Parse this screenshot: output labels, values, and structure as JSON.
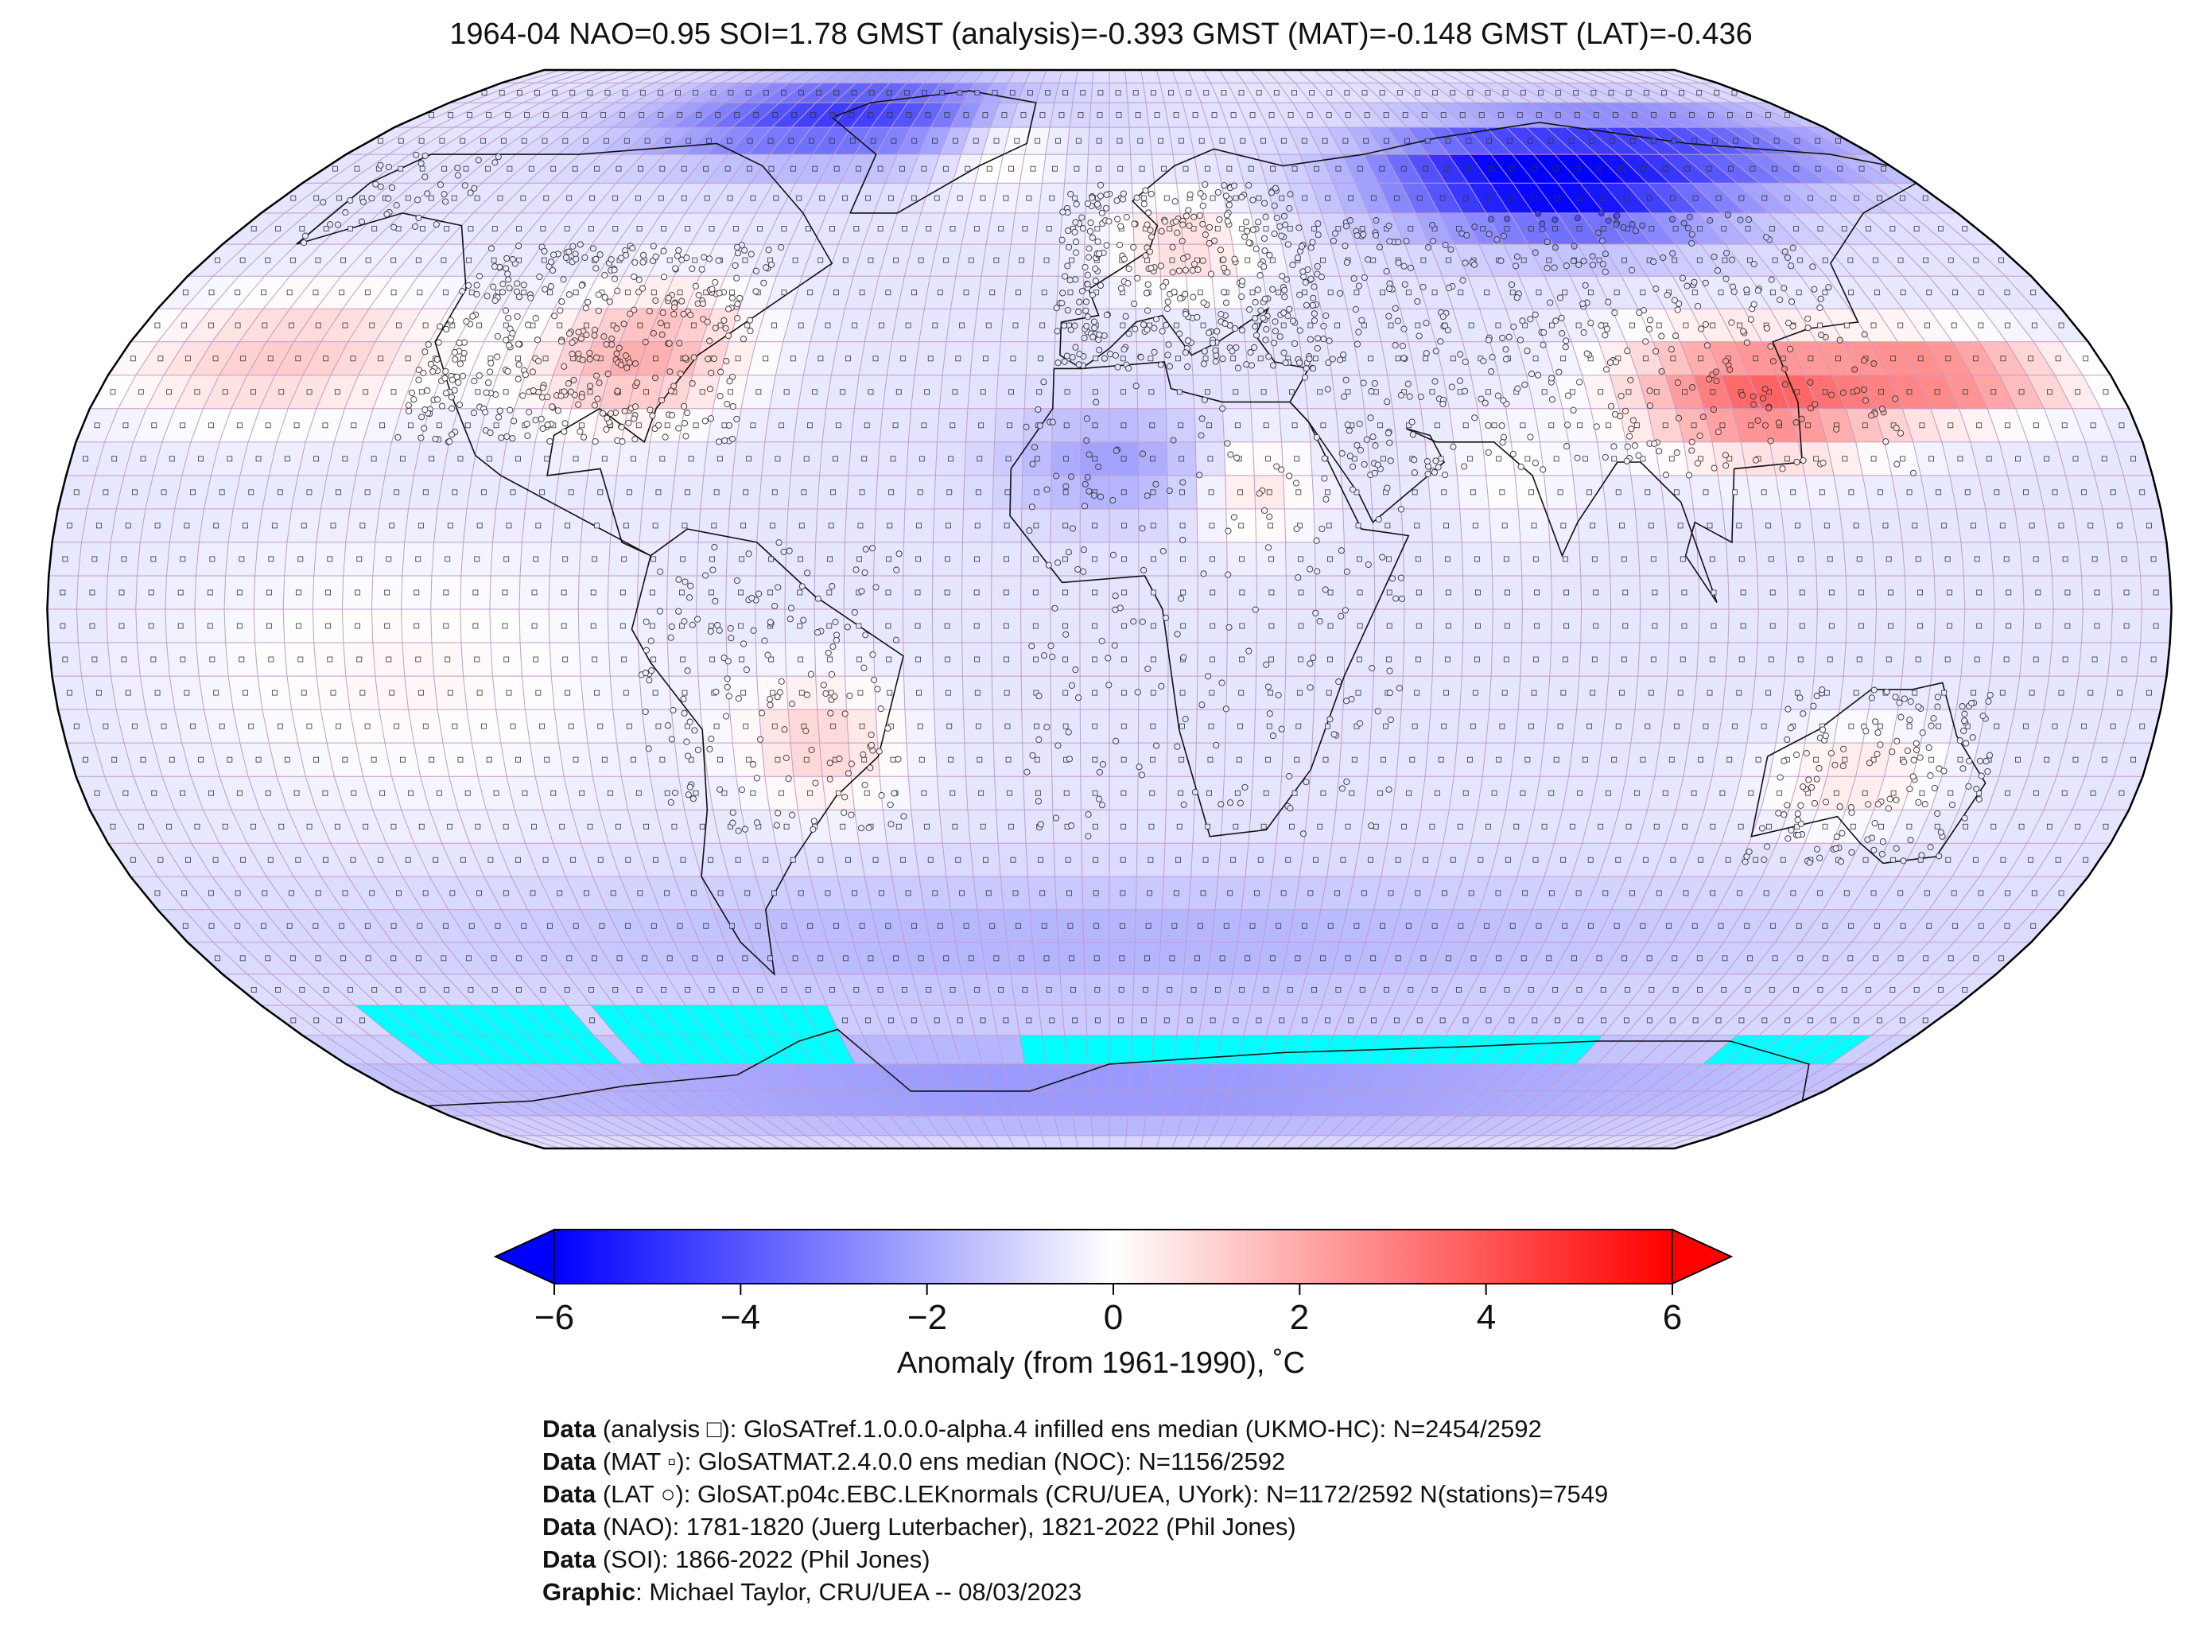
{
  "title": "1964-04 NAO=0.95 SOI=1.78 GMST (analysis)=-0.393 GMST (MAT)=-0.148 GMST (LAT)=-0.436",
  "colorbar": {
    "ticks": [
      "−6",
      "−4",
      "−2",
      "0",
      "2",
      "4",
      "6"
    ],
    "tick_values": [
      -6,
      -4,
      -2,
      0,
      2,
      4,
      6
    ],
    "label": "Anomaly (from 1961-1990), ˚C",
    "colors": {
      "min": "#0000ff",
      "mid": "#ffffff",
      "max": "#ff0000"
    }
  },
  "map": {
    "projection": "robinson",
    "grid": "5x5 degree",
    "missing_color": "#00ffff",
    "anomaly_regions": [
      {
        "region": "Arctic Canada / Greenland",
        "anomaly": -4.5
      },
      {
        "region": "North Atlantic",
        "anomaly": 1.0
      },
      {
        "region": "Northern Europe",
        "anomaly": 1.5
      },
      {
        "region": "Siberia",
        "anomaly": -6.0
      },
      {
        "region": "East Asia",
        "anomaly": 4.0
      },
      {
        "region": "Eastern North America",
        "anomaly": 2.5
      },
      {
        "region": "North Pacific",
        "anomaly": 2.0
      },
      {
        "region": "Sahara",
        "anomaly": -1.5
      },
      {
        "region": "South America",
        "anomaly": 1.5
      },
      {
        "region": "Australia",
        "anomaly": 1.0
      },
      {
        "region": "Southern Ocean",
        "anomaly": -1.5
      },
      {
        "region": "Antarctica",
        "anomaly": -2.5
      }
    ]
  },
  "credits": [
    {
      "bold": "Data",
      "text": " (analysis □): GloSATref.1.0.0.0-alpha.4 infilled ens median (UKMO-HC): N=2454/2592"
    },
    {
      "bold": "Data",
      "text": " (MAT ▫): GloSATMAT.2.4.0.0 ens median (NOC): N=1156/2592"
    },
    {
      "bold": "Data",
      "text": " (LAT ○): GloSAT.p04c.EBC.LEKnormals (CRU/UEA, UYork): N=1172/2592 N(stations)=7549"
    },
    {
      "bold": "Data",
      "text": " (NAO): 1781-1820 (Juerg Luterbacher), 1821-2022 (Phil Jones)"
    },
    {
      "bold": "Data",
      "text": " (SOI): 1866-2022 (Phil Jones)"
    },
    {
      "bold": "Graphic",
      "text": ": Michael Taylor, CRU/UEA -- 08/03/2023"
    }
  ]
}
